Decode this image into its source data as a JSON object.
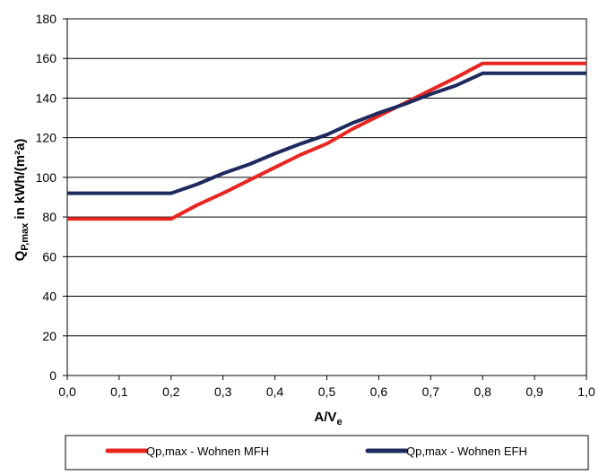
{
  "chart_data": {
    "type": "line",
    "title": "",
    "xlabel": "A/V",
    "xlabel_sub": "e",
    "ylabel": "Q",
    "ylabel_sub": "P,max",
    "ylabel_suffix": " in kWh/(m²a)",
    "xlim": [
      0,
      1
    ],
    "ylim": [
      0,
      180
    ],
    "xticks": [
      0.0,
      0.1,
      0.2,
      0.3,
      0.4,
      0.5,
      0.6,
      0.7,
      0.8,
      0.9,
      1.0
    ],
    "xtick_labels": [
      "0,0",
      "0,1",
      "0,2",
      "0,3",
      "0,4",
      "0,5",
      "0,6",
      "0,7",
      "0,8",
      "0,9",
      "1,0"
    ],
    "yticks": [
      0,
      20,
      40,
      60,
      80,
      100,
      120,
      140,
      160,
      180
    ],
    "ytick_labels": [
      "0",
      "20",
      "40",
      "60",
      "80",
      "100",
      "120",
      "140",
      "160",
      "180"
    ],
    "grid": "horizontal",
    "legend_position": "bottom",
    "series": [
      {
        "name": "Qp,max - Wohnen MFH",
        "color": "#e8251f",
        "x": [
          0.0,
          0.2,
          0.25,
          0.3,
          0.35,
          0.4,
          0.45,
          0.5,
          0.55,
          0.6,
          0.65,
          0.7,
          0.75,
          0.8,
          0.9,
          1.0
        ],
        "y": [
          79,
          79,
          86,
          92,
          98.5,
          105,
          111.5,
          117,
          124.5,
          131,
          137.5,
          144,
          150.5,
          157.5,
          157.5,
          157.5
        ]
      },
      {
        "name": "Qp,max - Wohnen EFH",
        "color": "#1e2a5e",
        "x": [
          0.0,
          0.2,
          0.25,
          0.3,
          0.35,
          0.4,
          0.45,
          0.5,
          0.55,
          0.6,
          0.65,
          0.7,
          0.75,
          0.8,
          0.9,
          1.0
        ],
        "y": [
          92,
          92,
          96.5,
          102,
          106.5,
          112,
          117,
          121.5,
          127.5,
          132.5,
          137,
          142,
          146.5,
          152.5,
          152.5,
          152.5
        ]
      }
    ]
  }
}
